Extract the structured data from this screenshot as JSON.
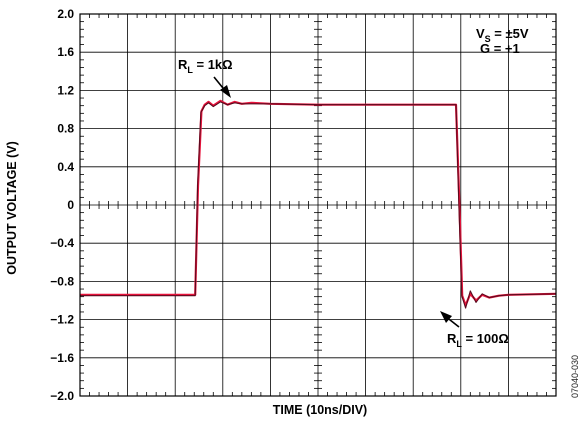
{
  "chart_data": {
    "type": "line",
    "title": "",
    "xlabel": "TIME (10ns/DIV)",
    "ylabel": "OUTPUT VOLTAGE (V)",
    "x_divisions": 10,
    "ylim": [
      -2.0,
      2.0
    ],
    "y_ticks": [
      2.0,
      1.6,
      1.2,
      0.8,
      0.4,
      0,
      -0.4,
      -0.8,
      -1.2,
      -1.6,
      -2.0
    ],
    "y_tick_labels": [
      "2.0",
      "1.6",
      "1.2",
      "0.8",
      "0.4",
      "0",
      "−0.4",
      "−0.8",
      "−1.2",
      "−1.6",
      "−2.0"
    ],
    "grid": true,
    "series": [
      {
        "color": "#e8143c",
        "x": [
          0,
          2.2,
          2.42,
          2.48,
          2.55,
          2.62,
          2.7,
          2.8,
          2.95,
          3.1,
          3.25,
          3.4,
          3.6,
          4.0,
          5.0,
          6.0,
          7.0,
          7.8,
          7.9,
          7.97,
          8.03,
          8.1,
          8.2,
          8.32,
          8.45,
          8.6,
          8.8,
          9.0,
          10
        ],
        "y": [
          -0.94,
          -0.94,
          -0.94,
          0.2,
          0.98,
          1.05,
          1.08,
          1.04,
          1.09,
          1.05,
          1.08,
          1.06,
          1.07,
          1.06,
          1.05,
          1.05,
          1.05,
          1.05,
          1.05,
          0.0,
          -0.95,
          -1.05,
          -0.93,
          -1.0,
          -0.94,
          -0.97,
          -0.95,
          -0.94,
          -0.93
        ]
      },
      {
        "color": "#5a0a1e",
        "x": [
          0,
          2.2,
          2.42,
          2.47,
          2.54,
          2.62,
          2.7,
          2.8,
          2.95,
          3.1,
          3.25,
          3.4,
          3.6,
          4.0,
          5.0,
          6.0,
          7.0,
          7.8,
          7.9,
          7.96,
          8.02,
          8.1,
          8.2,
          8.32,
          8.45,
          8.6,
          8.8,
          9.0,
          10
        ],
        "y": [
          -0.95,
          -0.95,
          -0.95,
          0.2,
          0.97,
          1.04,
          1.07,
          1.03,
          1.08,
          1.05,
          1.07,
          1.06,
          1.06,
          1.06,
          1.05,
          1.05,
          1.05,
          1.05,
          1.05,
          0.0,
          -0.95,
          -1.08,
          -0.9,
          -1.02,
          -0.93,
          -0.97,
          -0.95,
          -0.94,
          -0.93
        ]
      }
    ],
    "annotations": {
      "vs_main": "V",
      "vs_sub": "S",
      "vs_rest": " = ±5V",
      "gain": "G = +1",
      "rl1_main": "R",
      "rl1_sub": "L",
      "rl1_rest": " = 1kΩ",
      "rl2_main": "R",
      "rl2_sub": "L",
      "rl2_rest": " = 100Ω"
    },
    "figure_id": "07040-030"
  }
}
